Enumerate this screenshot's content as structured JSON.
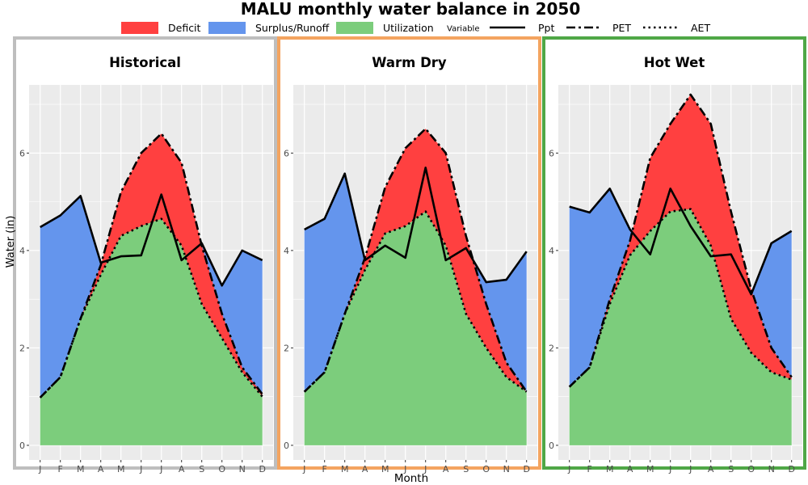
{
  "title": "MALU monthly water balance in 2050",
  "xlabel": "Month",
  "ylabel": "Water (in)",
  "legend": {
    "fill": [
      {
        "key": "deficit",
        "label": "Deficit"
      },
      {
        "key": "surplus",
        "label": "Surplus/Runoff"
      },
      {
        "key": "utilization",
        "label": "Utilization"
      }
    ],
    "line_title": "Variable",
    "lines": [
      {
        "key": "ppt",
        "label": "Ppt"
      },
      {
        "key": "pet",
        "label": "PET"
      },
      {
        "key": "aet",
        "label": "AET"
      }
    ]
  },
  "colors": {
    "deficit": "#ff4040",
    "surplus": "#6495ed",
    "utilization": "#7ccd7c",
    "panel_bg": "#ebebeb",
    "grid": "#ffffff",
    "frame_historical": "#bebebe",
    "frame_warm_dry": "#f4a460",
    "frame_hot_wet": "#4fa746"
  },
  "chart_data": {
    "type": "area",
    "x": [
      "J",
      "F",
      "M",
      "A",
      "M",
      "J",
      "J",
      "A",
      "S",
      "O",
      "N",
      "D"
    ],
    "ylim": [
      -0.3,
      7.4
    ],
    "yticks": [
      0,
      2,
      4,
      6
    ],
    "panels": [
      {
        "key": "historical",
        "title": "Historical",
        "series": [
          {
            "name": "Ppt",
            "values": [
              4.48,
              4.72,
              5.12,
              3.75,
              3.88,
              3.9,
              5.15,
              3.8,
              4.15,
              3.28,
              4.0,
              3.8
            ]
          },
          {
            "name": "PET",
            "values": [
              0.98,
              1.4,
              2.6,
              3.7,
              5.2,
              6.0,
              6.4,
              5.8,
              4.1,
              2.7,
              1.6,
              1.05
            ]
          },
          {
            "name": "AET",
            "values": [
              0.98,
              1.4,
              2.6,
              3.5,
              4.3,
              4.5,
              4.65,
              4.1,
              2.9,
              2.2,
              1.5,
              1.0
            ]
          }
        ]
      },
      {
        "key": "warm_dry",
        "title": "Warm Dry",
        "series": [
          {
            "name": "Ppt",
            "values": [
              4.43,
              4.65,
              5.58,
              3.8,
              4.1,
              3.85,
              5.7,
              3.8,
              4.05,
              3.35,
              3.4,
              3.98
            ]
          },
          {
            "name": "PET",
            "values": [
              1.1,
              1.5,
              2.7,
              3.85,
              5.3,
              6.1,
              6.5,
              6.0,
              4.3,
              2.9,
              1.7,
              1.1
            ]
          },
          {
            "name": "AET",
            "values": [
              1.1,
              1.5,
              2.7,
              3.6,
              4.35,
              4.5,
              4.8,
              4.1,
              2.7,
              2.0,
              1.4,
              1.1
            ]
          }
        ]
      },
      {
        "key": "hot_wet",
        "title": "Hot Wet",
        "series": [
          {
            "name": "Ppt",
            "values": [
              4.9,
              4.78,
              5.27,
              4.43,
              3.92,
              5.27,
              4.5,
              3.88,
              3.92,
              3.1,
              4.15,
              4.4
            ]
          },
          {
            "name": "PET",
            "values": [
              1.2,
              1.6,
              3.0,
              4.2,
              5.9,
              6.6,
              7.2,
              6.6,
              4.8,
              3.2,
              2.0,
              1.4
            ]
          },
          {
            "name": "AET",
            "values": [
              1.2,
              1.6,
              2.9,
              3.9,
              4.4,
              4.8,
              4.85,
              4.1,
              2.6,
              1.9,
              1.5,
              1.35
            ]
          }
        ]
      }
    ]
  }
}
